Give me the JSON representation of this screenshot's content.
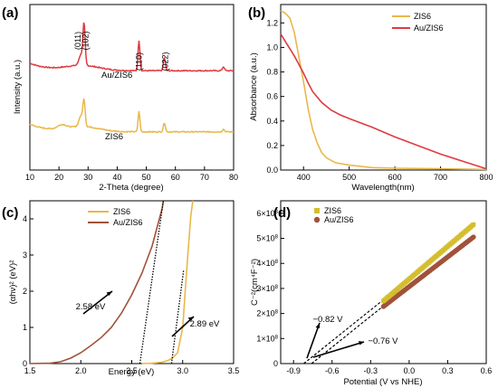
{
  "colors": {
    "zis6": "#E8B84A",
    "au_zis6": "#E03A3E",
    "au_zis6_tauc": "#A0523A",
    "au_zis6_mott": "#A0523A",
    "zis6_mott": "#D4BE2E"
  },
  "chart_data": [
    {
      "id": "a",
      "panel_label": "(a)",
      "type": "line",
      "xlabel": "2-Theta (degree)",
      "ylabel": "Intensity (a.u.)",
      "xlim": [
        10,
        80
      ],
      "xticks": [
        "10",
        "20",
        "30",
        "40",
        "50",
        "60",
        "70",
        "80"
      ],
      "series": [
        {
          "name": "Au/ZIS6",
          "color": "#E03A3E",
          "baseline": 0.78,
          "slope": 0.06,
          "peaks": [
            [
              27.5,
              0.08,
              0.9
            ],
            [
              28.6,
              0.32,
              0.55
            ],
            [
              47.5,
              0.24,
              0.45
            ],
            [
              56.2,
              0.1,
              0.5
            ],
            [
              76.5,
              0.03,
              0.5
            ]
          ]
        },
        {
          "name": "ZIS6",
          "color": "#E8B84A",
          "baseline": 0.3,
          "slope": 0.06,
          "peaks": [
            [
              21,
              0.03,
              2
            ],
            [
              27.5,
              0.08,
              0.9
            ],
            [
              28.6,
              0.2,
              0.55
            ],
            [
              47.5,
              0.16,
              0.45
            ],
            [
              56.2,
              0.07,
              0.5
            ],
            [
              76.5,
              0.02,
              0.5
            ]
          ]
        }
      ],
      "hkl": [
        {
          "label": "(011)",
          "x": 26.5
        },
        {
          "label": "(102)",
          "x": 29.2
        },
        {
          "label": "(110)",
          "x": 47.5
        },
        {
          "label": "(022)",
          "x": 56.5
        }
      ],
      "series_labels": [
        "Au/ZIS6",
        "ZIS6"
      ]
    },
    {
      "id": "b",
      "panel_label": "(b)",
      "type": "line",
      "xlabel": "Wavelength(nm)",
      "ylabel": "Absorbance (a.u.)",
      "xlim": [
        350,
        800
      ],
      "ylim": [
        0,
        1.35
      ],
      "xticks": [
        "400",
        "500",
        "600",
        "700",
        "800"
      ],
      "yticks": [
        "0.0",
        "0.2",
        "0.4",
        "0.6",
        "0.8",
        "1.0",
        "1.2"
      ],
      "legend": "top-right",
      "series": [
        {
          "name": "ZIS6",
          "color": "#E8B84A",
          "points": [
            [
              350,
              1.3
            ],
            [
              360,
              1.28
            ],
            [
              370,
              1.24
            ],
            [
              380,
              1.12
            ],
            [
              390,
              0.92
            ],
            [
              400,
              0.72
            ],
            [
              410,
              0.5
            ],
            [
              420,
              0.33
            ],
            [
              430,
              0.22
            ],
            [
              440,
              0.14
            ],
            [
              450,
              0.1
            ],
            [
              470,
              0.06
            ],
            [
              500,
              0.04
            ],
            [
              550,
              0.02
            ],
            [
              600,
              0.015
            ],
            [
              700,
              0.01
            ],
            [
              800,
              0.005
            ]
          ]
        },
        {
          "name": "Au/ZIS6",
          "color": "#E03A3E",
          "points": [
            [
              350,
              1.11
            ],
            [
              360,
              1.05
            ],
            [
              370,
              0.99
            ],
            [
              380,
              0.93
            ],
            [
              390,
              0.86
            ],
            [
              400,
              0.79
            ],
            [
              410,
              0.71
            ],
            [
              420,
              0.64
            ],
            [
              440,
              0.55
            ],
            [
              460,
              0.49
            ],
            [
              480,
              0.45
            ],
            [
              500,
              0.42
            ],
            [
              550,
              0.35
            ],
            [
              600,
              0.27
            ],
            [
              650,
              0.2
            ],
            [
              700,
              0.13
            ],
            [
              750,
              0.07
            ],
            [
              800,
              0.01
            ]
          ]
        }
      ]
    },
    {
      "id": "c",
      "panel_label": "(c)",
      "type": "line",
      "xlabel": "Energy (eV)",
      "ylabel": "(αhν)² (eV)²",
      "xlim": [
        1.5,
        3.5
      ],
      "ylim": [
        0,
        4.5
      ],
      "xticks": [
        "1.5",
        "2.0",
        "2.5",
        "3.0",
        "3.5"
      ],
      "yticks": [
        "0",
        "1",
        "2",
        "3",
        "4"
      ],
      "legend": "top-left",
      "series": [
        {
          "name": "ZIS6",
          "color": "#E8B84A",
          "points": [
            [
              2.6,
              0.0
            ],
            [
              2.7,
              0.01
            ],
            [
              2.8,
              0.04
            ],
            [
              2.85,
              0.08
            ],
            [
              2.9,
              0.15
            ],
            [
              2.95,
              0.3
            ],
            [
              3.0,
              1.0
            ],
            [
              3.02,
              1.8
            ],
            [
              3.05,
              3.0
            ],
            [
              3.08,
              4.1
            ],
            [
              3.1,
              4.5
            ]
          ]
        },
        {
          "name": "Au/ZIS6",
          "color": "#A0523A",
          "points": [
            [
              1.5,
              0.0
            ],
            [
              1.7,
              0.01
            ],
            [
              1.8,
              0.05
            ],
            [
              1.9,
              0.15
            ],
            [
              2.0,
              0.3
            ],
            [
              2.1,
              0.5
            ],
            [
              2.2,
              0.72
            ],
            [
              2.3,
              1.0
            ],
            [
              2.4,
              1.4
            ],
            [
              2.5,
              1.9
            ],
            [
              2.6,
              2.5
            ],
            [
              2.7,
              3.25
            ],
            [
              2.8,
              4.3
            ],
            [
              2.81,
              4.5
            ]
          ]
        }
      ],
      "fit_lines": [
        {
          "points": [
            [
              2.58,
              0.0
            ],
            [
              2.81,
              4.5
            ]
          ]
        },
        {
          "points": [
            [
              2.89,
              0.0
            ],
            [
              3.01,
              2.6
            ]
          ]
        }
      ],
      "annotations": [
        {
          "text": "2.58 eV"
        },
        {
          "text": "2.89 eV"
        }
      ]
    },
    {
      "id": "d",
      "panel_label": "(d)",
      "type": "scatter",
      "xlabel": "Potential (V vs NHE)",
      "ylabel": "C⁻²(cm⁴F⁻²)",
      "xlim": [
        -1.0,
        0.6
      ],
      "ylim": [
        0,
        650000000.0
      ],
      "xticks": [
        "-0.9",
        "-0.6",
        "-0.3",
        "0.0",
        "0.3",
        "0.6"
      ],
      "yticks": [
        [
          "0",
          "0"
        ],
        [
          "1",
          "8"
        ],
        [
          "2",
          "8"
        ],
        [
          "3",
          "8"
        ],
        [
          "4",
          "8"
        ],
        [
          "5",
          "8"
        ],
        [
          "6",
          "8"
        ]
      ],
      "legend": "top-left",
      "series": [
        {
          "name": "ZIS6",
          "color": "#D4BE2E",
          "x_start": -0.2,
          "x_end": 0.5,
          "y_start": 250000000.0,
          "y_end": 555000000.0
        },
        {
          "name": "Au/ZIS6",
          "color": "#A0523A",
          "x_start": -0.2,
          "x_end": 0.5,
          "y_start": 228000000.0,
          "y_end": 505000000.0
        }
      ],
      "fit_lines": [
        {
          "points": [
            [
              -0.82,
              0.0
            ],
            [
              -0.2,
              255000000.0
            ]
          ]
        },
        {
          "points": [
            [
              -0.76,
              0.0
            ],
            [
              -0.2,
              230000000.0
            ]
          ]
        }
      ],
      "annotations": [
        {
          "text": "−0.82 V"
        },
        {
          "text": "−0.76 V"
        }
      ]
    }
  ]
}
